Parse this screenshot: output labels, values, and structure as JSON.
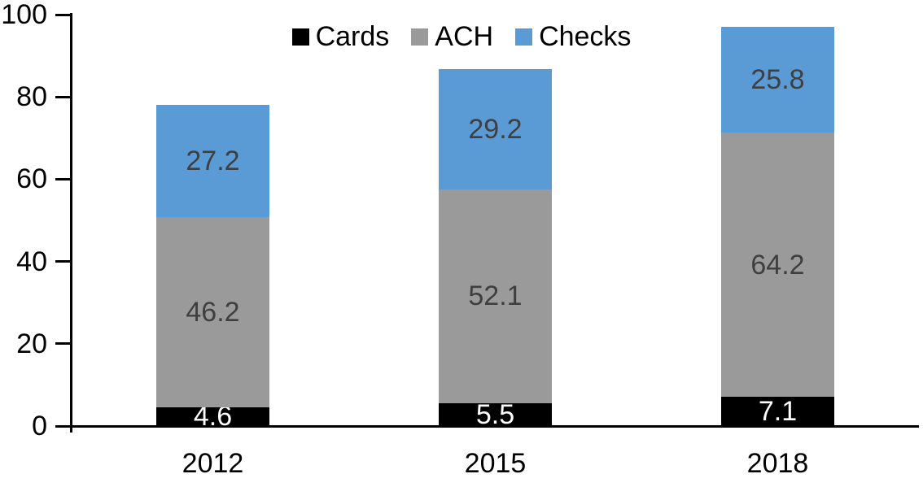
{
  "chart_data": {
    "type": "bar",
    "subtype": "stacked",
    "title": "",
    "xlabel": "",
    "ylabel": "",
    "categories": [
      "2012",
      "2015",
      "2018"
    ],
    "series": [
      {
        "name": "Cards",
        "color": "#000000",
        "label_color": "#FFFFFF",
        "values": [
          4.6,
          5.5,
          7.1
        ]
      },
      {
        "name": "ACH",
        "color": "#9A9A9A",
        "label_color": "#3F3F3F",
        "values": [
          46.2,
          52.1,
          64.2
        ]
      },
      {
        "name": "Checks",
        "color": "#5B9BD5",
        "label_color": "#3F3F3F",
        "values": [
          27.2,
          29.2,
          25.8
        ]
      }
    ],
    "y_axis": {
      "min": 0,
      "max": 100,
      "ticks": [
        0,
        20,
        40,
        60,
        80,
        100
      ]
    },
    "legend": {
      "position": "top",
      "entries": [
        "Cards",
        "ACH",
        "Checks"
      ]
    },
    "grid": false,
    "axis_color": "#000000",
    "background": "#FFFFFF",
    "data_label_decimals": 1
  }
}
